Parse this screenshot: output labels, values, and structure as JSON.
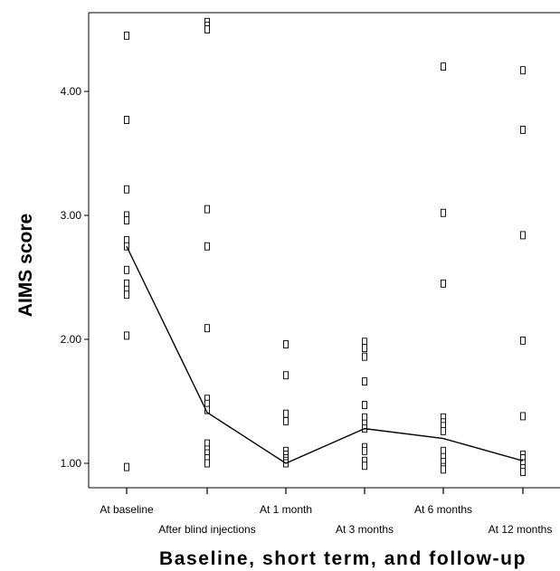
{
  "chart_data": {
    "type": "scatter",
    "title": "",
    "xlabel": "Baseline, short term, and follow-up",
    "ylabel": "AIMS score",
    "categories": [
      "At baseline",
      "After blind injections",
      "At 1 month",
      "At 3 months",
      "At 6 months",
      "At 12 months"
    ],
    "ylim": [
      0.8,
      4.65
    ],
    "yticks": [
      1.0,
      2.0,
      3.0,
      4.0
    ],
    "ytick_labels": [
      "1.00",
      "2.00",
      "3.00",
      "4.00"
    ],
    "grid": false,
    "legend": "none",
    "series": [
      {
        "marker": "open-square",
        "points": [
          [
            0,
            4.45
          ],
          [
            0,
            3.77
          ],
          [
            0,
            3.21
          ],
          [
            0,
            3.0
          ],
          [
            0,
            2.96
          ],
          [
            0,
            2.8
          ],
          [
            0,
            2.75
          ],
          [
            0,
            2.56
          ],
          [
            0,
            2.45
          ],
          [
            0,
            2.4
          ],
          [
            0,
            2.36
          ],
          [
            0,
            2.03
          ],
          [
            0,
            0.97
          ],
          [
            1,
            4.56
          ],
          [
            1,
            4.53
          ],
          [
            1,
            4.5
          ],
          [
            1,
            3.05
          ],
          [
            1,
            2.75
          ],
          [
            1,
            2.09
          ],
          [
            1,
            1.52
          ],
          [
            1,
            1.48
          ],
          [
            1,
            1.43
          ],
          [
            1,
            1.16
          ],
          [
            1,
            1.11
          ],
          [
            1,
            1.08
          ],
          [
            1,
            1.04
          ],
          [
            1,
            1.0
          ],
          [
            2,
            1.96
          ],
          [
            2,
            1.71
          ],
          [
            2,
            1.4
          ],
          [
            2,
            1.34
          ],
          [
            2,
            1.1
          ],
          [
            2,
            1.07
          ],
          [
            2,
            1.04
          ],
          [
            2,
            1.02
          ],
          [
            2,
            1.0
          ],
          [
            3,
            1.98
          ],
          [
            3,
            1.93
          ],
          [
            3,
            1.86
          ],
          [
            3,
            1.66
          ],
          [
            3,
            1.47
          ],
          [
            3,
            1.37
          ],
          [
            3,
            1.32
          ],
          [
            3,
            1.28
          ],
          [
            3,
            1.13
          ],
          [
            3,
            1.1
          ],
          [
            3,
            1.02
          ],
          [
            3,
            0.98
          ],
          [
            4,
            4.2
          ],
          [
            4,
            3.02
          ],
          [
            4,
            2.45
          ],
          [
            4,
            1.37
          ],
          [
            4,
            1.33
          ],
          [
            4,
            1.3
          ],
          [
            4,
            1.26
          ],
          [
            4,
            1.1
          ],
          [
            4,
            1.05
          ],
          [
            4,
            1.01
          ],
          [
            4,
            0.97
          ],
          [
            4,
            0.95
          ],
          [
            5,
            4.17
          ],
          [
            5,
            3.69
          ],
          [
            5,
            2.84
          ],
          [
            5,
            1.99
          ],
          [
            5,
            1.38
          ],
          [
            5,
            1.07
          ],
          [
            5,
            1.04
          ],
          [
            5,
            1.0
          ],
          [
            5,
            0.96
          ],
          [
            5,
            0.93
          ]
        ]
      },
      {
        "type": "line",
        "x": [
          0,
          1,
          2,
          3,
          4,
          5
        ],
        "values": [
          2.75,
          1.41,
          1.0,
          1.28,
          1.2,
          1.02
        ]
      }
    ]
  }
}
